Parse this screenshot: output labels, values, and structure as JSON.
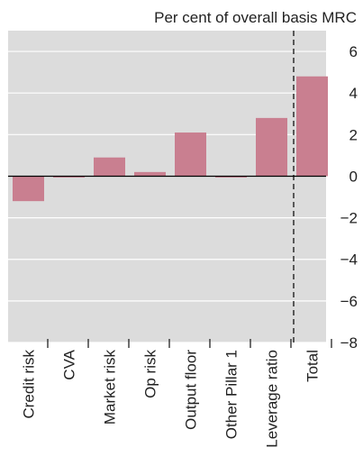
{
  "chart_data": {
    "type": "bar",
    "title": "Per cent of overall basis MRC",
    "categories": [
      "Credit risk",
      "CVA",
      "Market risk",
      "Op risk",
      "Output floor",
      "Other Pillar 1",
      "Leverage ratio",
      "Total"
    ],
    "values": [
      -1.2,
      0.0,
      0.9,
      0.2,
      2.1,
      -0.05,
      2.8,
      4.8
    ],
    "ylim": [
      -8,
      7
    ],
    "yticks": [
      6,
      4,
      2,
      0,
      -2,
      -4,
      -6,
      -8
    ],
    "ytick_labels": [
      "6",
      "4",
      "2",
      "0",
      "−2",
      "−4",
      "−6",
      "−8"
    ],
    "grid": true,
    "separator_before": "Total",
    "colors": {
      "bar": "#c97f90",
      "plot_background": "#dcdcdc",
      "gridline": "#ffffff",
      "zero_line": "#000000"
    }
  }
}
